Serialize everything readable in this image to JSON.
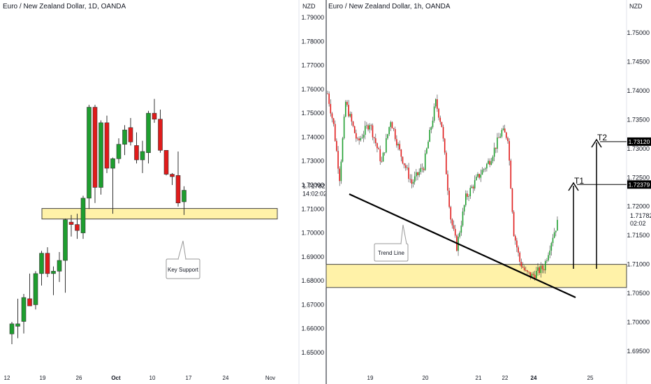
{
  "left": {
    "title": "Euro / New Zealand Dollar, 1D, OANDA",
    "axis_unit": "NZD",
    "y_ticks": [
      "1.79000",
      "1.78000",
      "1.77000",
      "1.76000",
      "1.75000",
      "1.74000",
      "1.73000",
      "1.72000",
      "1.71000",
      "1.70000",
      "1.69000",
      "1.68000",
      "1.67000",
      "1.66000",
      "1.65000"
    ],
    "x_ticks": [
      "12",
      "19",
      "26",
      "Oct",
      "10",
      "17",
      "24",
      "Nov"
    ],
    "price_label": "1.71782",
    "countdown_label": "14:02:02",
    "zone_label": "Key Support",
    "colors": {
      "up": "#1e9e2f",
      "down": "#e01b1b",
      "zone_fill": "#fff2a8",
      "zone_border": "#333333"
    }
  },
  "right": {
    "title": "Euro / New Zealand Dollar, 1h, OANDA",
    "axis_unit": "NZD",
    "y_ticks": [
      "1.75000",
      "1.74500",
      "1.74000",
      "1.73500",
      "1.73000",
      "1.72500",
      "1.72000",
      "1.71500",
      "1.71000",
      "1.70500",
      "1.70000",
      "1.69500"
    ],
    "x_ticks": [
      "19",
      "20",
      "21",
      "22",
      "24",
      "25"
    ],
    "price_label": "1.71782",
    "countdown_label": "02:02",
    "target1_label": "T1",
    "target2_label": "T2",
    "target1_price": "1.72379",
    "target2_price": "1.73120",
    "trend_label": "Trend Line",
    "colors": {
      "up": "#1e9e2f",
      "down": "#e01b1b",
      "zone_fill": "#fff2a8",
      "line": "#000000"
    }
  },
  "chart_data": [
    {
      "type": "candlestick",
      "title": "Euro / New Zealand Dollar, 1D, OANDA",
      "ylabel": "NZD",
      "ylim": [
        1.6535,
        1.794
      ],
      "x_ticks": [
        "12",
        "19",
        "26",
        "Oct",
        "10",
        "17",
        "24",
        "Nov"
      ],
      "candles": [
        {
          "o": 1.6578,
          "h": 1.6628,
          "l": 1.6535,
          "c": 1.662
        },
        {
          "o": 1.661,
          "h": 1.6725,
          "l": 1.656,
          "c": 1.662
        },
        {
          "o": 1.663,
          "h": 1.6745,
          "l": 1.658,
          "c": 1.673
        },
        {
          "o": 1.6725,
          "h": 1.683,
          "l": 1.67,
          "c": 1.6695
        },
        {
          "o": 1.67,
          "h": 1.684,
          "l": 1.668,
          "c": 1.683
        },
        {
          "o": 1.683,
          "h": 1.6925,
          "l": 1.678,
          "c": 1.6915
        },
        {
          "o": 1.6915,
          "h": 1.694,
          "l": 1.6815,
          "c": 1.683
        },
        {
          "o": 1.683,
          "h": 1.686,
          "l": 1.674,
          "c": 1.684
        },
        {
          "o": 1.684,
          "h": 1.692,
          "l": 1.6795,
          "c": 1.6885
        },
        {
          "o": 1.6885,
          "h": 1.706,
          "l": 1.675,
          "c": 1.7055
        },
        {
          "o": 1.7045,
          "h": 1.7075,
          "l": 1.6985,
          "c": 1.7035
        },
        {
          "o": 1.7035,
          "h": 1.708,
          "l": 1.6975,
          "c": 1.701
        },
        {
          "o": 1.7,
          "h": 1.7155,
          "l": 1.6975,
          "c": 1.7145
        },
        {
          "o": 1.7145,
          "h": 1.7535,
          "l": 1.71,
          "c": 1.7525
        },
        {
          "o": 1.7525,
          "h": 1.7535,
          "l": 1.7125,
          "c": 1.719
        },
        {
          "o": 1.719,
          "h": 1.747,
          "l": 1.716,
          "c": 1.746
        },
        {
          "o": 1.746,
          "h": 1.749,
          "l": 1.725,
          "c": 1.727
        },
        {
          "o": 1.727,
          "h": 1.7315,
          "l": 1.708,
          "c": 1.731
        },
        {
          "o": 1.731,
          "h": 1.7395,
          "l": 1.729,
          "c": 1.737
        },
        {
          "o": 1.737,
          "h": 1.745,
          "l": 1.7325,
          "c": 1.743
        },
        {
          "o": 1.744,
          "h": 1.748,
          "l": 1.7365,
          "c": 1.738
        },
        {
          "o": 1.7365,
          "h": 1.742,
          "l": 1.729,
          "c": 1.7305
        },
        {
          "o": 1.7305,
          "h": 1.7385,
          "l": 1.725,
          "c": 1.734
        },
        {
          "o": 1.7335,
          "h": 1.751,
          "l": 1.729,
          "c": 1.75
        },
        {
          "o": 1.75,
          "h": 1.756,
          "l": 1.746,
          "c": 1.7475
        },
        {
          "o": 1.7475,
          "h": 1.7515,
          "l": 1.7335,
          "c": 1.7345
        },
        {
          "o": 1.7345,
          "h": 1.7345,
          "l": 1.724,
          "c": 1.7245
        },
        {
          "o": 1.7245,
          "h": 1.725,
          "l": 1.72,
          "c": 1.7235
        },
        {
          "o": 1.724,
          "h": 1.734,
          "l": 1.711,
          "c": 1.7125
        },
        {
          "o": 1.713,
          "h": 1.7195,
          "l": 1.7075,
          "c": 1.7178
        }
      ],
      "zones": [
        {
          "label": "Key Support",
          "from": 1.7058,
          "to": 1.7102
        }
      ],
      "last_price": 1.71782
    },
    {
      "type": "candlestick",
      "title": "Euro / New Zealand Dollar, 1h, OANDA",
      "ylabel": "NZD",
      "ylim": [
        1.6918,
        1.7532
      ],
      "x_ticks": [
        "19",
        "20",
        "21",
        "22",
        "24",
        "25"
      ],
      "candles_approx": "hourly EUR/NZD series falling from ~1.740 to ~1.707 with rally to 1.735 mid-range, last 1.71782",
      "zones": [
        {
          "from": 1.706,
          "to": 1.71
        }
      ],
      "trend_line": {
        "label": "Trend Line",
        "from": 1.726,
        "to": 1.705
      },
      "targets": [
        {
          "label": "T1",
          "price": 1.72379
        },
        {
          "label": "T2",
          "price": 1.7312
        }
      ],
      "last_price": 1.71782
    }
  ]
}
